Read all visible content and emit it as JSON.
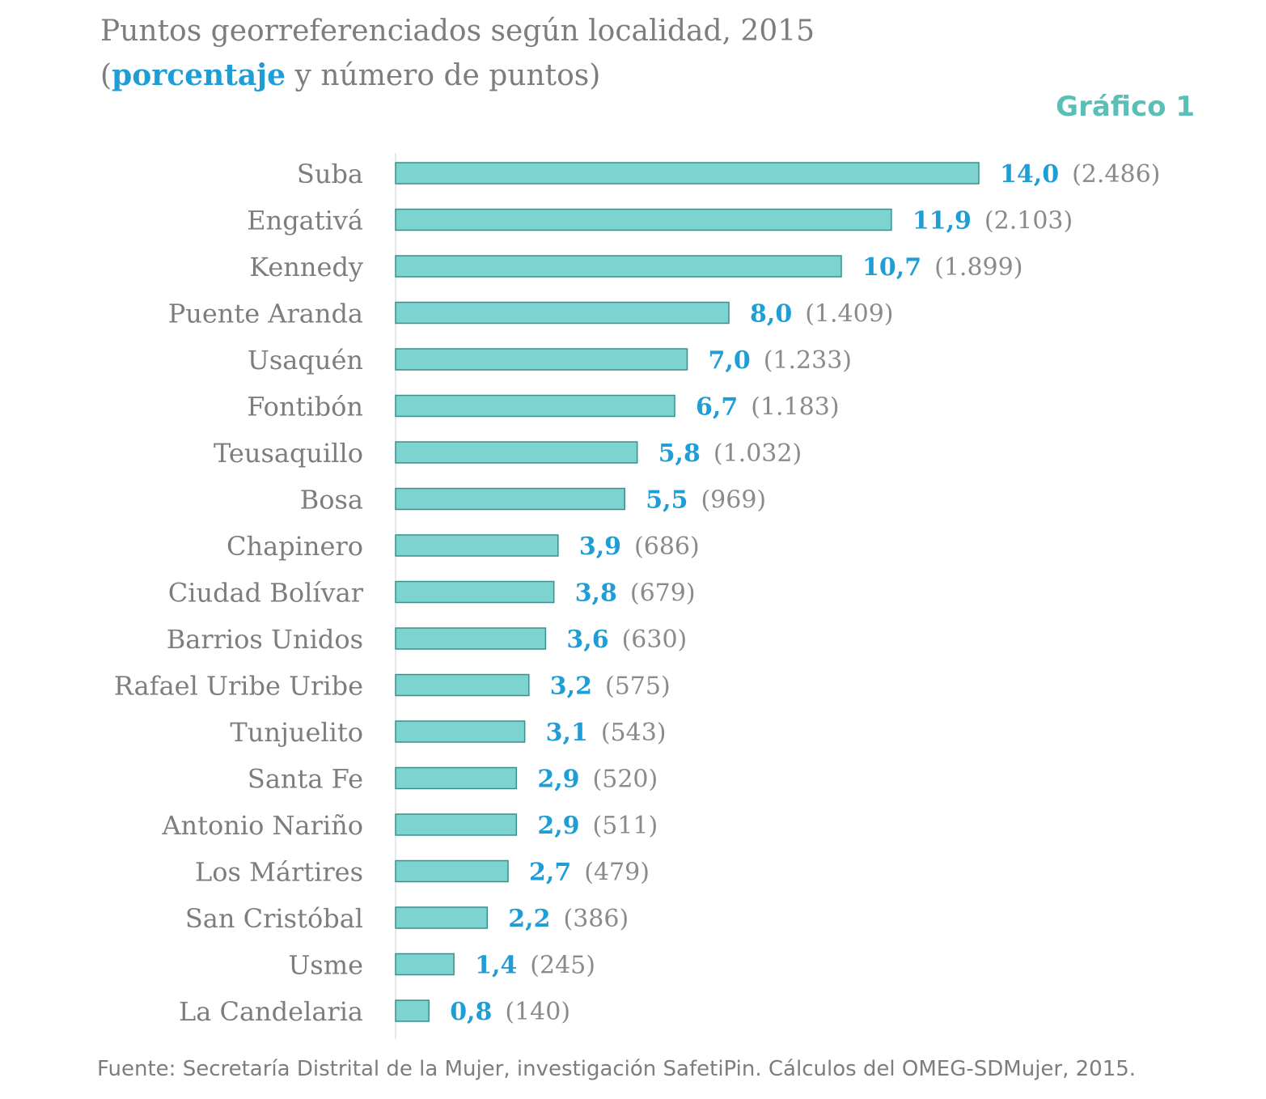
{
  "title_line1": "Puntos georreferenciados según localidad, 2015",
  "title_line2_open": "(",
  "title_line2_highlight": "porcentaje",
  "title_line2_rest": " y número de puntos)",
  "figure_label": "Gráfico 1",
  "source": "Fuente: Secretaría Distrital de la Mujer, investigación SafetiPin. Cálculos del OMEG-SDMujer, 2015.",
  "colors": {
    "bar": "#7dd3cf",
    "bar_stroke": "#3c8f8b",
    "percent": "#1f9ed6",
    "count": "#8a8a8a",
    "label": "#7d7d7d"
  },
  "chart_data": {
    "type": "bar",
    "orientation": "horizontal",
    "categories": [
      "Suba",
      "Engativá",
      "Kennedy",
      "Puente Aranda",
      "Usaquén",
      "Fontibón",
      "Teusaquillo",
      "Bosa",
      "Chapinero",
      "Ciudad Bolívar",
      "Barrios Unidos",
      "Rafael Uribe Uribe",
      "Tunjuelito",
      "Santa Fe",
      "Antonio Nariño",
      "Los Mártires",
      "San Cristóbal",
      "Usme",
      "La Candelaria"
    ],
    "values": [
      14.0,
      11.9,
      10.7,
      8.0,
      7.0,
      6.7,
      5.8,
      5.5,
      3.9,
      3.8,
      3.6,
      3.2,
      3.1,
      2.9,
      2.9,
      2.7,
      2.2,
      1.4,
      0.8
    ],
    "value_labels": [
      "14,0",
      "11,9",
      "10,7",
      "8,0",
      "7,0",
      "6,7",
      "5,8",
      "5,5",
      "3,9",
      "3,8",
      "3,6",
      "3,2",
      "3,1",
      "2,9",
      "2,9",
      "2,7",
      "2,2",
      "1,4",
      "0,8"
    ],
    "count_labels": [
      "(2.486)",
      "(2.103)",
      "(1.899)",
      "(1.409)",
      "(1.233)",
      "(1.183)",
      "(1.032)",
      "(969)",
      "(686)",
      "(679)",
      "(630)",
      "(575)",
      "(543)",
      "(520)",
      "(511)",
      "(479)",
      "(386)",
      "(245)",
      "(140)"
    ],
    "xlim": [
      0,
      14.0
    ],
    "grid": false,
    "legend": "none"
  }
}
